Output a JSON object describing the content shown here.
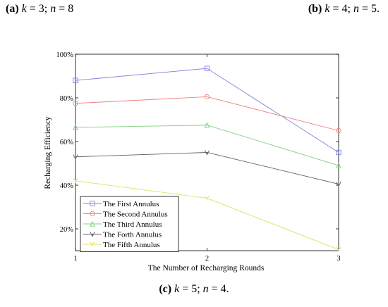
{
  "captions": {
    "a": {
      "label": "(a)",
      "k_var": "k",
      "k_eq": " = 3; ",
      "n_var": "n",
      "n_eq": " = 8"
    },
    "b": {
      "label": "(b)",
      "k_var": "k",
      "k_eq": " = 4; ",
      "n_var": "n",
      "n_eq": " = 5."
    },
    "c": {
      "label": "(c)",
      "k_var": "k",
      "k_eq": " = 5; ",
      "n_var": "n",
      "n_eq": " = 4."
    }
  },
  "chart_data": {
    "type": "line",
    "title": "",
    "xlabel": "The Number of Recharging Rounds",
    "ylabel": "Recharging Efficiency",
    "x": [
      1,
      2,
      3
    ],
    "x_tick_labels": [
      "1",
      "2",
      "3"
    ],
    "xlim": [
      1,
      3
    ],
    "ylim": [
      10,
      100
    ],
    "y_ticks": [
      20,
      40,
      60,
      80,
      100
    ],
    "y_tick_labels": [
      "20%",
      "40%",
      "60%",
      "80%",
      "100%"
    ],
    "grid": false,
    "legend_position": "bottom-left",
    "series": [
      {
        "name": "The First Annulus",
        "values": [
          88,
          93.5,
          55
        ],
        "color": "#8080e0",
        "marker": "square"
      },
      {
        "name": "The Second Annulus",
        "values": [
          77.5,
          80.5,
          65
        ],
        "color": "#f08080",
        "marker": "circle"
      },
      {
        "name": "The Third Annulus",
        "values": [
          66.5,
          67.5,
          49
        ],
        "color": "#80d080",
        "marker": "triangle-up"
      },
      {
        "name": "The Forth Annulus",
        "values": [
          53,
          55,
          40.5
        ],
        "color": "#606060",
        "marker": "triangle-down"
      },
      {
        "name": "The Fifth Annulus",
        "values": [
          42,
          34,
          10.5
        ],
        "color": "#e0e060",
        "marker": "star"
      }
    ]
  }
}
